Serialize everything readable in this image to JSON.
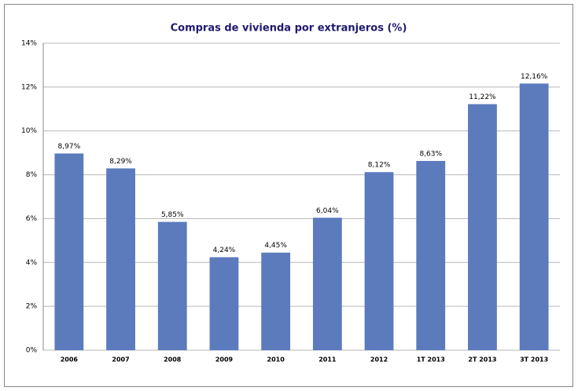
{
  "chart_data": {
    "type": "bar",
    "title": "Compras de vivienda por extranjeros (%)",
    "categories": [
      "2006",
      "2007",
      "2008",
      "2009",
      "2010",
      "2011",
      "2012",
      "1T 2013",
      "2T 2013",
      "3T 2013"
    ],
    "values": [
      8.97,
      8.29,
      5.85,
      4.24,
      4.45,
      6.04,
      8.12,
      8.63,
      11.22,
      12.16
    ],
    "value_labels": [
      "8,97%",
      "8,29%",
      "5,85%",
      "4,24%",
      "4,45%",
      "6,04%",
      "8,12%",
      "8,63%",
      "11,22%",
      "12,16%"
    ],
    "color": "#5b7bbd",
    "ylim": [
      0,
      14
    ],
    "yticks": [
      {
        "value": 0,
        "label": "0%"
      },
      {
        "value": 2,
        "label": "2%"
      },
      {
        "value": 4,
        "label": "4%"
      },
      {
        "value": 6,
        "label": "6%"
      },
      {
        "value": 8,
        "label": "8%"
      },
      {
        "value": 10,
        "label": "10%"
      },
      {
        "value": 12,
        "label": "12%"
      },
      {
        "value": 14,
        "label": "14%"
      }
    ],
    "grid": true
  }
}
